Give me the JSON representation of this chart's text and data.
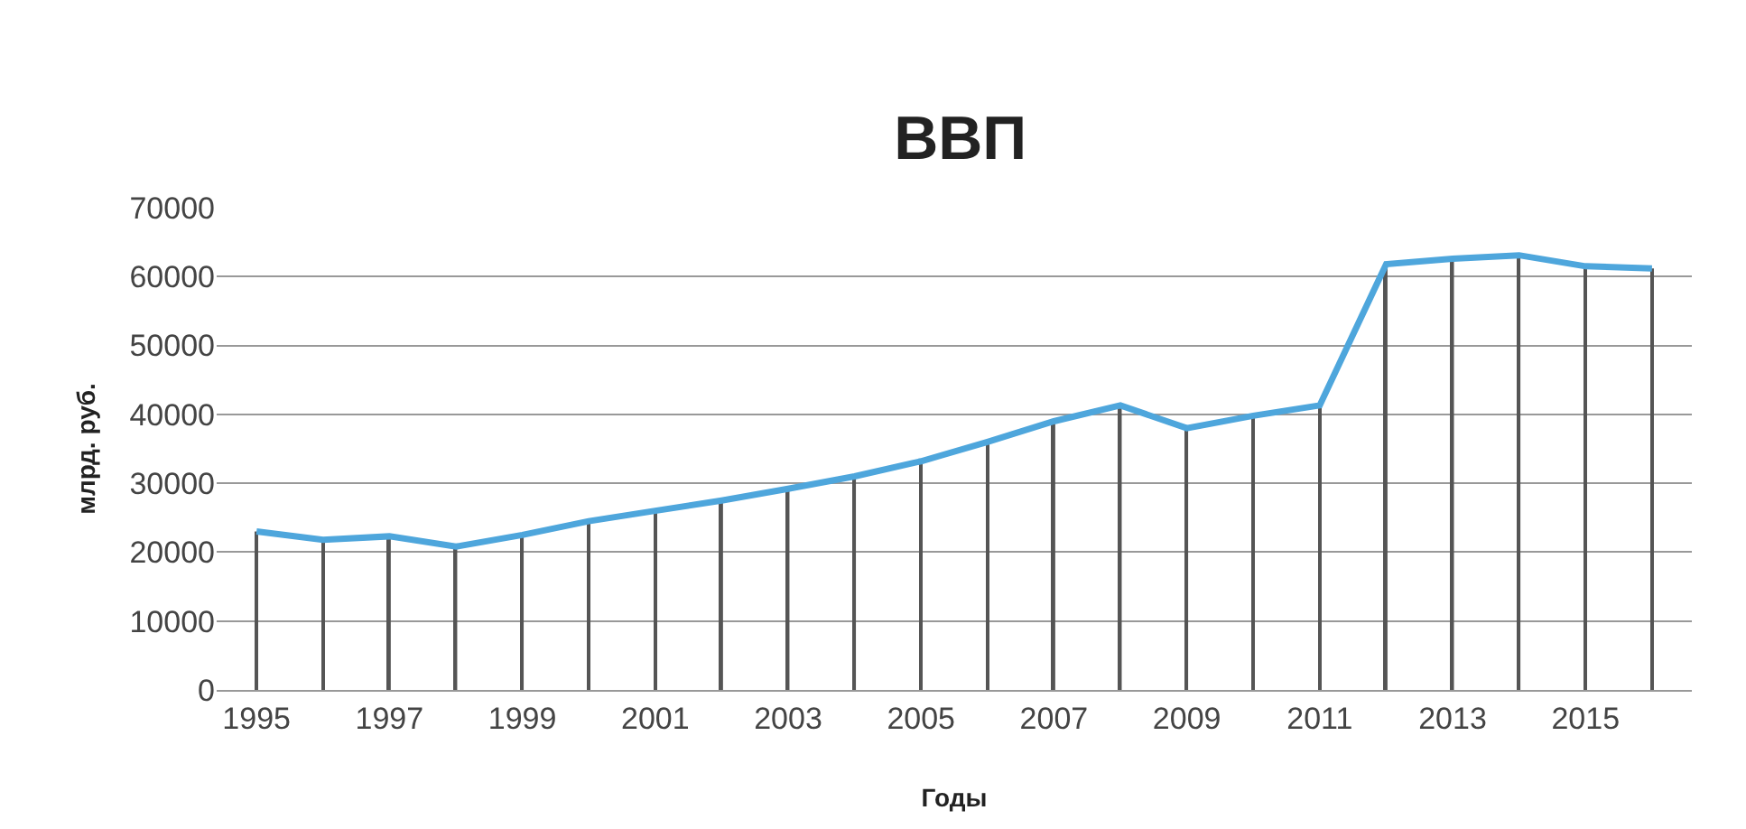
{
  "chart_data": {
    "type": "line",
    "title": "ВВП",
    "xlabel": "Годы",
    "ylabel": "млрд. руб.",
    "categories": [
      "1995",
      null,
      "1997",
      null,
      "1999",
      null,
      "2001",
      null,
      "2003",
      null,
      "2005",
      null,
      "2007",
      null,
      "2009",
      null,
      "2011",
      null,
      "2013",
      null,
      "2015",
      null
    ],
    "series": [
      {
        "type": "bar",
        "color": "#555555",
        "values": [
          23000,
          21800,
          22300,
          20800,
          22500,
          24500,
          26000,
          27500,
          29200,
          31000,
          33200,
          36000,
          39000,
          41300,
          38000,
          39800,
          41300,
          61800,
          62600,
          63100,
          61500,
          61200
        ]
      },
      {
        "color": "#4ea6dc",
        "values": [
          23000,
          21800,
          22300,
          20800,
          22500,
          24500,
          26000,
          27500,
          29200,
          31000,
          33200,
          36000,
          39000,
          41300,
          38000,
          39800,
          41300,
          61800,
          62600,
          63100,
          61500,
          61200
        ]
      }
    ],
    "ylim": [
      0,
      70000
    ],
    "yticks": [
      0,
      10000,
      20000,
      30000,
      40000,
      50000,
      60000,
      70000
    ],
    "grid": "y",
    "marker": "none",
    "line_style": "solid"
  }
}
